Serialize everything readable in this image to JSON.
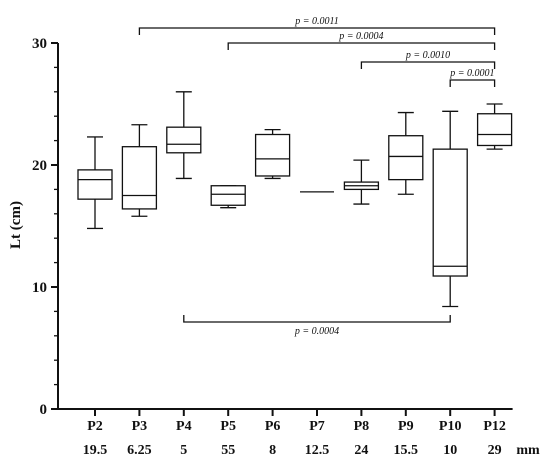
{
  "chart_data": {
    "type": "box",
    "ylabel": "Lt (cm)",
    "xunit": "mm",
    "ylim": [
      0,
      30
    ],
    "yticks": [
      0,
      10,
      20,
      30
    ],
    "grid": false,
    "categories": [
      "P2",
      "P3",
      "P4",
      "P5",
      "P6",
      "P7",
      "P8",
      "P9",
      "P10",
      "P12"
    ],
    "sublabels": [
      "19.5",
      "6.25",
      "5",
      "55",
      "8",
      "12.5",
      "24",
      "15.5",
      "10",
      "29"
    ],
    "boxes": [
      {
        "category": "P2",
        "min": 14.8,
        "q1": 17.2,
        "median": 18.8,
        "q3": 19.6,
        "max": 22.3
      },
      {
        "category": "P3",
        "min": 15.8,
        "q1": 16.4,
        "median": 17.5,
        "q3": 21.5,
        "max": 23.3
      },
      {
        "category": "P4",
        "min": 18.9,
        "q1": 21.0,
        "median": 21.7,
        "q3": 23.1,
        "max": 26.0
      },
      {
        "category": "P5",
        "min": 16.5,
        "q1": 16.7,
        "median": 17.6,
        "q3": 18.3,
        "max": 18.3
      },
      {
        "category": "P6",
        "min": 18.9,
        "q1": 19.1,
        "median": 20.5,
        "q3": 22.5,
        "max": 22.9
      },
      {
        "category": "P7",
        "min": 17.8,
        "q1": 17.8,
        "median": 17.8,
        "q3": 17.8,
        "max": 17.8
      },
      {
        "category": "P8",
        "min": 16.8,
        "q1": 18.0,
        "median": 18.3,
        "q3": 18.6,
        "max": 20.4
      },
      {
        "category": "P9",
        "min": 17.6,
        "q1": 18.8,
        "median": 20.7,
        "q3": 22.4,
        "max": 24.3
      },
      {
        "category": "P10",
        "min": 8.4,
        "q1": 10.9,
        "median": 11.7,
        "q3": 21.3,
        "max": 24.4
      },
      {
        "category": "P12",
        "min": 21.3,
        "q1": 21.6,
        "median": 22.5,
        "q3": 24.2,
        "max": 25.0
      }
    ],
    "annotations": [
      {
        "from": "P3",
        "to": "P12",
        "label": "p = 0.0011",
        "position": "above"
      },
      {
        "from": "P5",
        "to": "P12",
        "label": "p = 0.0004",
        "position": "above"
      },
      {
        "from": "P8",
        "to": "P12",
        "label": "p = 0.0010",
        "position": "above"
      },
      {
        "from": "P10",
        "to": "P12",
        "label": "p = 0.0001",
        "position": "above"
      },
      {
        "from": "P4",
        "to": "P10",
        "label": "p = 0.0004",
        "position": "below"
      }
    ]
  }
}
